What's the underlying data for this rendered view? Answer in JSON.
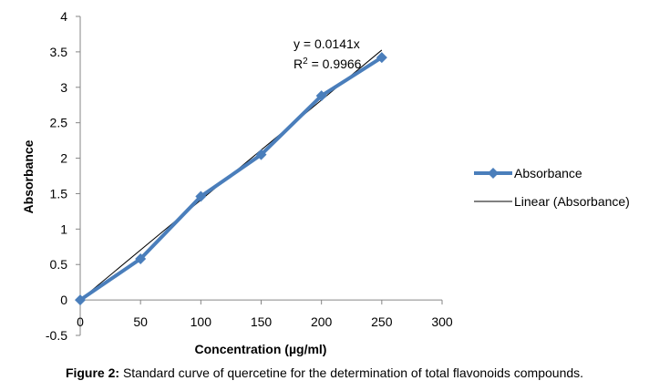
{
  "chart_data": {
    "type": "line",
    "xlabel": "Concentration (µg/ml)",
    "ylabel": "Absorbance",
    "xlim": [
      0,
      300
    ],
    "ylim": [
      -0.5,
      4
    ],
    "x_ticks": [
      0,
      50,
      100,
      150,
      200,
      250,
      300
    ],
    "y_ticks": [
      -0.5,
      0,
      0.5,
      1,
      1.5,
      2,
      2.5,
      3,
      3.5,
      4
    ],
    "x_tick_labels": [
      "0",
      "50",
      "100",
      "150",
      "200",
      "250",
      "300"
    ],
    "y_tick_labels": [
      "-0.5",
      "0",
      "0.5",
      "1",
      "1.5",
      "2",
      "2.5",
      "3",
      "3.5",
      "4"
    ],
    "grid": false,
    "legend_position": "right",
    "series": [
      {
        "name": "Absorbance",
        "marker": "diamond",
        "color": "#4A7EBB",
        "x": [
          0,
          50,
          100,
          150,
          200,
          250
        ],
        "y": [
          0,
          0.58,
          1.46,
          2.05,
          2.88,
          3.42
        ]
      },
      {
        "name": "Linear (Absorbance)",
        "color": "#000000",
        "slope": 0.0141,
        "x": [
          0,
          250
        ],
        "y": [
          0,
          3.525
        ]
      }
    ],
    "trendline_equation": "y = 0.0141x",
    "trendline_r2_prefix": "R",
    "trendline_r2_sup": "2",
    "trendline_r2_value": " = 0.9966"
  },
  "caption": {
    "label": "Figure 2:",
    "text": " Standard curve of quercetine for the determination of total flavonoids compounds."
  }
}
